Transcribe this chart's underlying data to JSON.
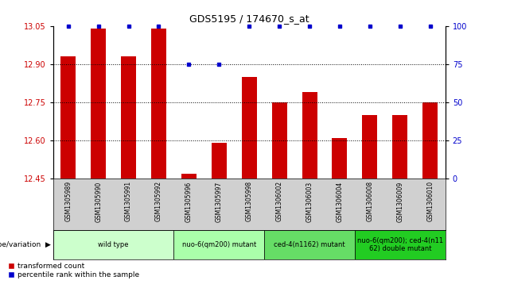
{
  "title": "GDS5195 / 174670_s_at",
  "samples": [
    "GSM1305989",
    "GSM1305990",
    "GSM1305991",
    "GSM1305992",
    "GSM1305996",
    "GSM1305997",
    "GSM1305998",
    "GSM1306002",
    "GSM1306003",
    "GSM1306004",
    "GSM1306008",
    "GSM1306009",
    "GSM1306010"
  ],
  "red_values": [
    12.93,
    13.04,
    12.93,
    13.04,
    12.47,
    12.59,
    12.85,
    12.75,
    12.79,
    12.61,
    12.7,
    12.7,
    12.75
  ],
  "blue_values": [
    100,
    100,
    100,
    100,
    75,
    75,
    100,
    100,
    100,
    100,
    100,
    100,
    100
  ],
  "ylim_left": [
    12.45,
    13.05
  ],
  "yticks_left": [
    12.45,
    12.6,
    12.75,
    12.9,
    13.05
  ],
  "yticks_right": [
    0,
    25,
    50,
    75,
    100
  ],
  "grid_values": [
    12.9,
    12.75,
    12.6
  ],
  "groups": [
    {
      "label": "wild type",
      "start": 0,
      "end": 3,
      "color": "#ccffcc"
    },
    {
      "label": "nuo-6(qm200) mutant",
      "start": 4,
      "end": 6,
      "color": "#aaffaa"
    },
    {
      "label": "ced-4(n1162) mutant",
      "start": 7,
      "end": 9,
      "color": "#66dd66"
    },
    {
      "label": "nuo-6(qm200); ced-4(n11\n62) double mutant",
      "start": 10,
      "end": 12,
      "color": "#22cc22"
    }
  ],
  "bar_color": "#cc0000",
  "blue_color": "#0000cc",
  "left_tick_color": "#cc0000",
  "right_tick_color": "#0000cc",
  "sample_bg_color": "#d0d0d0",
  "bar_width": 0.5
}
